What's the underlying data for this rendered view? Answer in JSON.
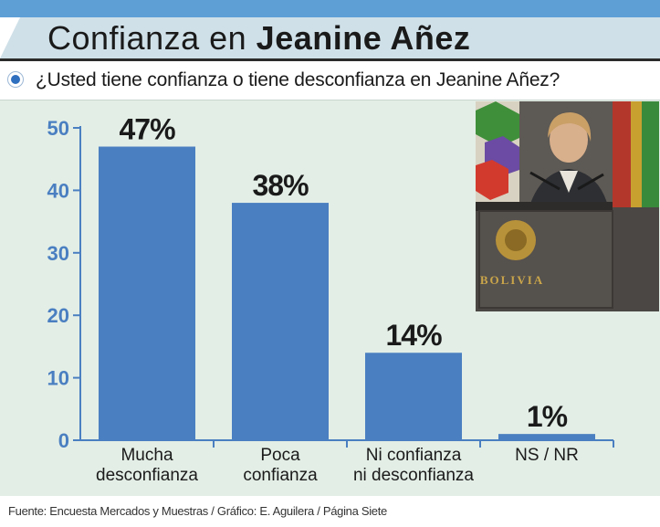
{
  "header": {
    "title_prefix": "Confianza en",
    "title_name": "Jeanine Añez"
  },
  "question": "¿Usted tiene confianza o tiene desconfianza en Jeanine Añez?",
  "colors": {
    "bar": "#4a7fc1",
    "axis": "#4a7fc1",
    "label": "#1a1a1a"
  },
  "photo": {
    "podium_text": "BOLIVIA"
  },
  "chart_data": {
    "type": "bar",
    "categories": [
      [
        "Mucha",
        "desconfianza"
      ],
      [
        "Poca",
        "confianza"
      ],
      [
        "Ni confianza",
        "ni desconfianza"
      ],
      [
        "NS / NR"
      ]
    ],
    "values": [
      47,
      38,
      14,
      1
    ],
    "value_labels": [
      "47%",
      "38%",
      "14%",
      "1%"
    ],
    "yticks": [
      0,
      10,
      20,
      30,
      40,
      50
    ],
    "ylim": [
      0,
      50
    ],
    "title": "",
    "xlabel": "",
    "ylabel": ""
  },
  "footer": "Fuente: Encuesta Mercados y Muestras / Gráfico: E. Aguilera / Página Siete"
}
